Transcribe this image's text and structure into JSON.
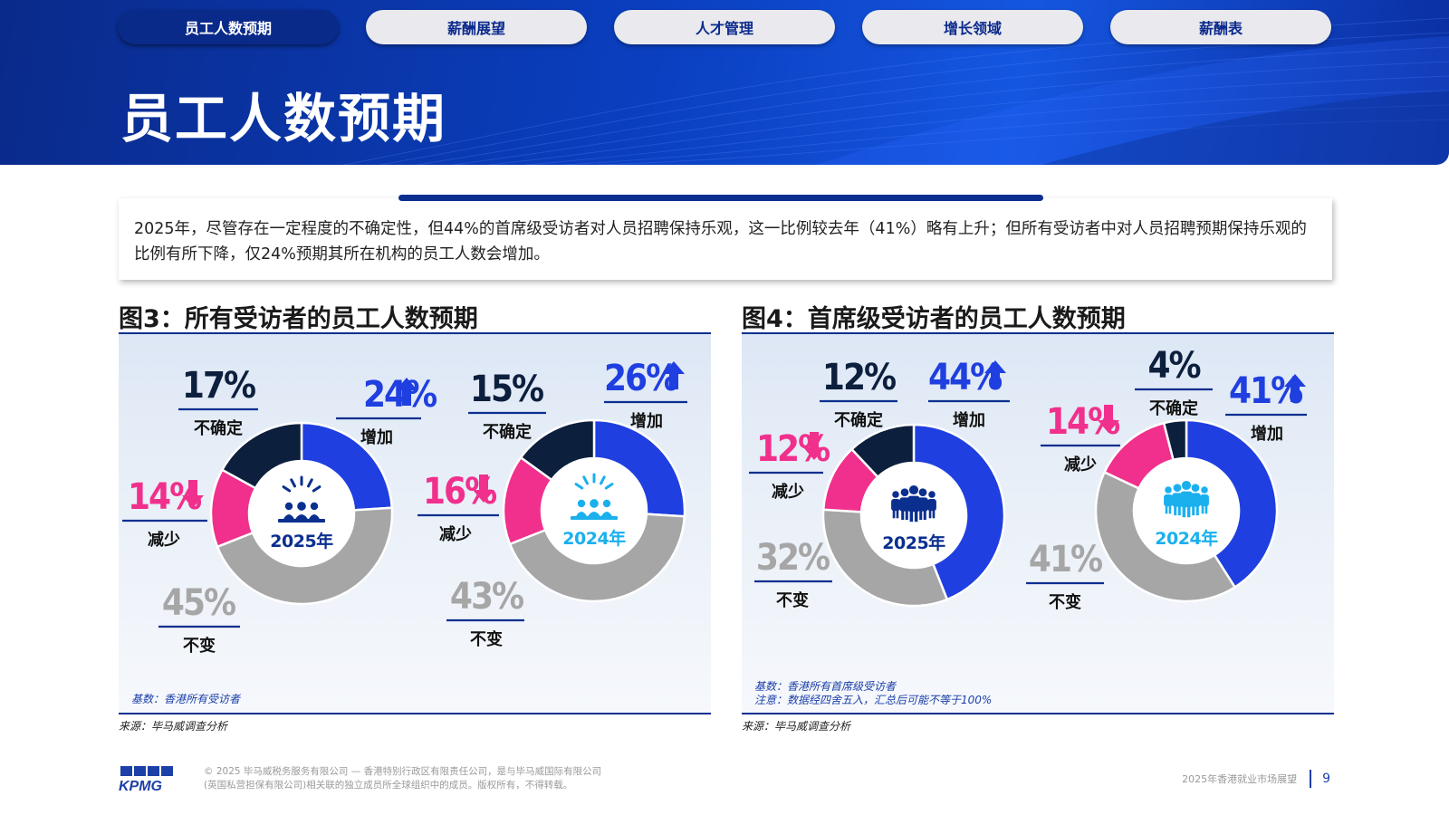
{
  "nav": {
    "tabs": [
      {
        "label": "员工人数预期",
        "active": true
      },
      {
        "label": "薪酬展望",
        "active": false
      },
      {
        "label": "人才管理",
        "active": false
      },
      {
        "label": "增长领域",
        "active": false
      },
      {
        "label": "薪酬表",
        "active": false
      }
    ]
  },
  "header": {
    "title": "员工人数预期"
  },
  "intro": {
    "text": "2025年，尽管存在一定程度的不确定性，但44%的首席级受访者对人员招聘保持乐观，这一比例较去年（41%）略有上升；但所有受访者中对人员招聘预期保持乐观的比例有所下降，仅24%预期其所在机构的员工人数会增加。"
  },
  "colors": {
    "increase": "#1f3fe0",
    "decrease": "#f0308c",
    "unchanged": "#a6a6a6",
    "uncertain": "#0c1f3d",
    "brand_navy": "#0b2f8f",
    "cyan": "#1ab0ee"
  },
  "figures": [
    {
      "title": "图3：所有受访者的员工人数预期",
      "base_note": "基数：香港所有受访者",
      "note": "",
      "source": "来源：毕马威调查分析",
      "icon": "crowd-celebration-icon"
    },
    {
      "title": "图4：首席级受访者的员工人数预期",
      "base_note": "基数：香港所有首席级受访者",
      "note": "注意：数据经四舍五入，汇总后可能不等于100%",
      "source": "来源：毕马威调查分析",
      "icon": "group-people-icon"
    }
  ],
  "chart_data": [
    {
      "type": "pie",
      "figure": "图3：所有受访者的员工人数预期",
      "center_label": "2025年",
      "slices": [
        {
          "label": "增加",
          "value": 24,
          "display": "24%",
          "trend": "up"
        },
        {
          "label": "不变",
          "value": 45,
          "display": "45%",
          "trend": "none"
        },
        {
          "label": "减少",
          "value": 14,
          "display": "14%",
          "trend": "down"
        },
        {
          "label": "不确定",
          "value": 17,
          "display": "17%",
          "trend": "none"
        }
      ]
    },
    {
      "type": "pie",
      "figure": "图3：所有受访者的员工人数预期",
      "center_label": "2024年",
      "slices": [
        {
          "label": "增加",
          "value": 26,
          "display": "26%",
          "trend": "up"
        },
        {
          "label": "不变",
          "value": 43,
          "display": "43%",
          "trend": "none"
        },
        {
          "label": "减少",
          "value": 16,
          "display": "16%",
          "trend": "down"
        },
        {
          "label": "不确定",
          "value": 15,
          "display": "15%",
          "trend": "none"
        }
      ]
    },
    {
      "type": "pie",
      "figure": "图4：首席级受访者的员工人数预期",
      "center_label": "2025年",
      "slices": [
        {
          "label": "增加",
          "value": 44,
          "display": "44%",
          "trend": "up"
        },
        {
          "label": "不变",
          "value": 32,
          "display": "32%",
          "trend": "none"
        },
        {
          "label": "减少",
          "value": 12,
          "display": "12%",
          "trend": "down"
        },
        {
          "label": "不确定",
          "value": 12,
          "display": "12%",
          "trend": "none"
        }
      ]
    },
    {
      "type": "pie",
      "figure": "图4：首席级受访者的员工人数预期",
      "center_label": "2024年",
      "slices": [
        {
          "label": "增加",
          "value": 41,
          "display": "41%",
          "trend": "up"
        },
        {
          "label": "不变",
          "value": 41,
          "display": "41%",
          "trend": "none"
        },
        {
          "label": "减少",
          "value": 14,
          "display": "14%",
          "trend": "down"
        },
        {
          "label": "不确定",
          "value": 4,
          "display": "4%",
          "trend": "none"
        }
      ]
    }
  ],
  "footer": {
    "logo_text": "KPMG",
    "copyright_line1": "© 2025 毕马威税务服务有限公司 — 香港特别行政区有限责任公司，是与毕马威国际有限公司",
    "copyright_line2": "(英国私营担保有限公司)相关联的独立成员所全球组织中的成员。版权所有，不得转载。",
    "report_name": "2025年香港就业市场展望",
    "page_number": "9"
  }
}
